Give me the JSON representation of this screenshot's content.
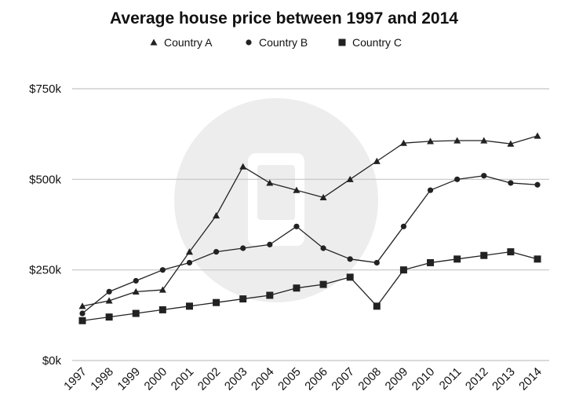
{
  "chart_data": {
    "type": "line",
    "title": "Average house price between 1997 and 2014",
    "xlabel": "",
    "ylabel": "",
    "categories": [
      "1997",
      "1998",
      "1999",
      "2000",
      "2001",
      "2002",
      "2003",
      "2004",
      "2005",
      "2006",
      "2007",
      "2008",
      "2009",
      "2010",
      "2011",
      "2012",
      "2013",
      "2014"
    ],
    "y_ticks": [
      {
        "value": 0,
        "label": "$0k"
      },
      {
        "value": 250,
        "label": "$250k"
      },
      {
        "value": 500,
        "label": "$500k"
      },
      {
        "value": 750,
        "label": "$750k"
      }
    ],
    "ylim": [
      0,
      750
    ],
    "grid": true,
    "legend_position": "top",
    "series": [
      {
        "name": "Country A",
        "marker": "triangle",
        "values": [
          150,
          165,
          190,
          195,
          300,
          400,
          535,
          490,
          470,
          450,
          500,
          550,
          600,
          605,
          607,
          607,
          598,
          620
        ]
      },
      {
        "name": "Country B",
        "marker": "circle",
        "values": [
          130,
          190,
          220,
          250,
          270,
          300,
          310,
          320,
          370,
          310,
          280,
          270,
          370,
          470,
          500,
          510,
          490,
          485
        ]
      },
      {
        "name": "Country C",
        "marker": "square",
        "values": [
          110,
          120,
          130,
          140,
          150,
          160,
          170,
          180,
          200,
          210,
          230,
          150,
          250,
          270,
          280,
          290,
          300,
          280
        ]
      }
    ],
    "colors": {
      "line": "#222222",
      "grid": "#c4c4c4",
      "watermark": "#ececec"
    }
  }
}
